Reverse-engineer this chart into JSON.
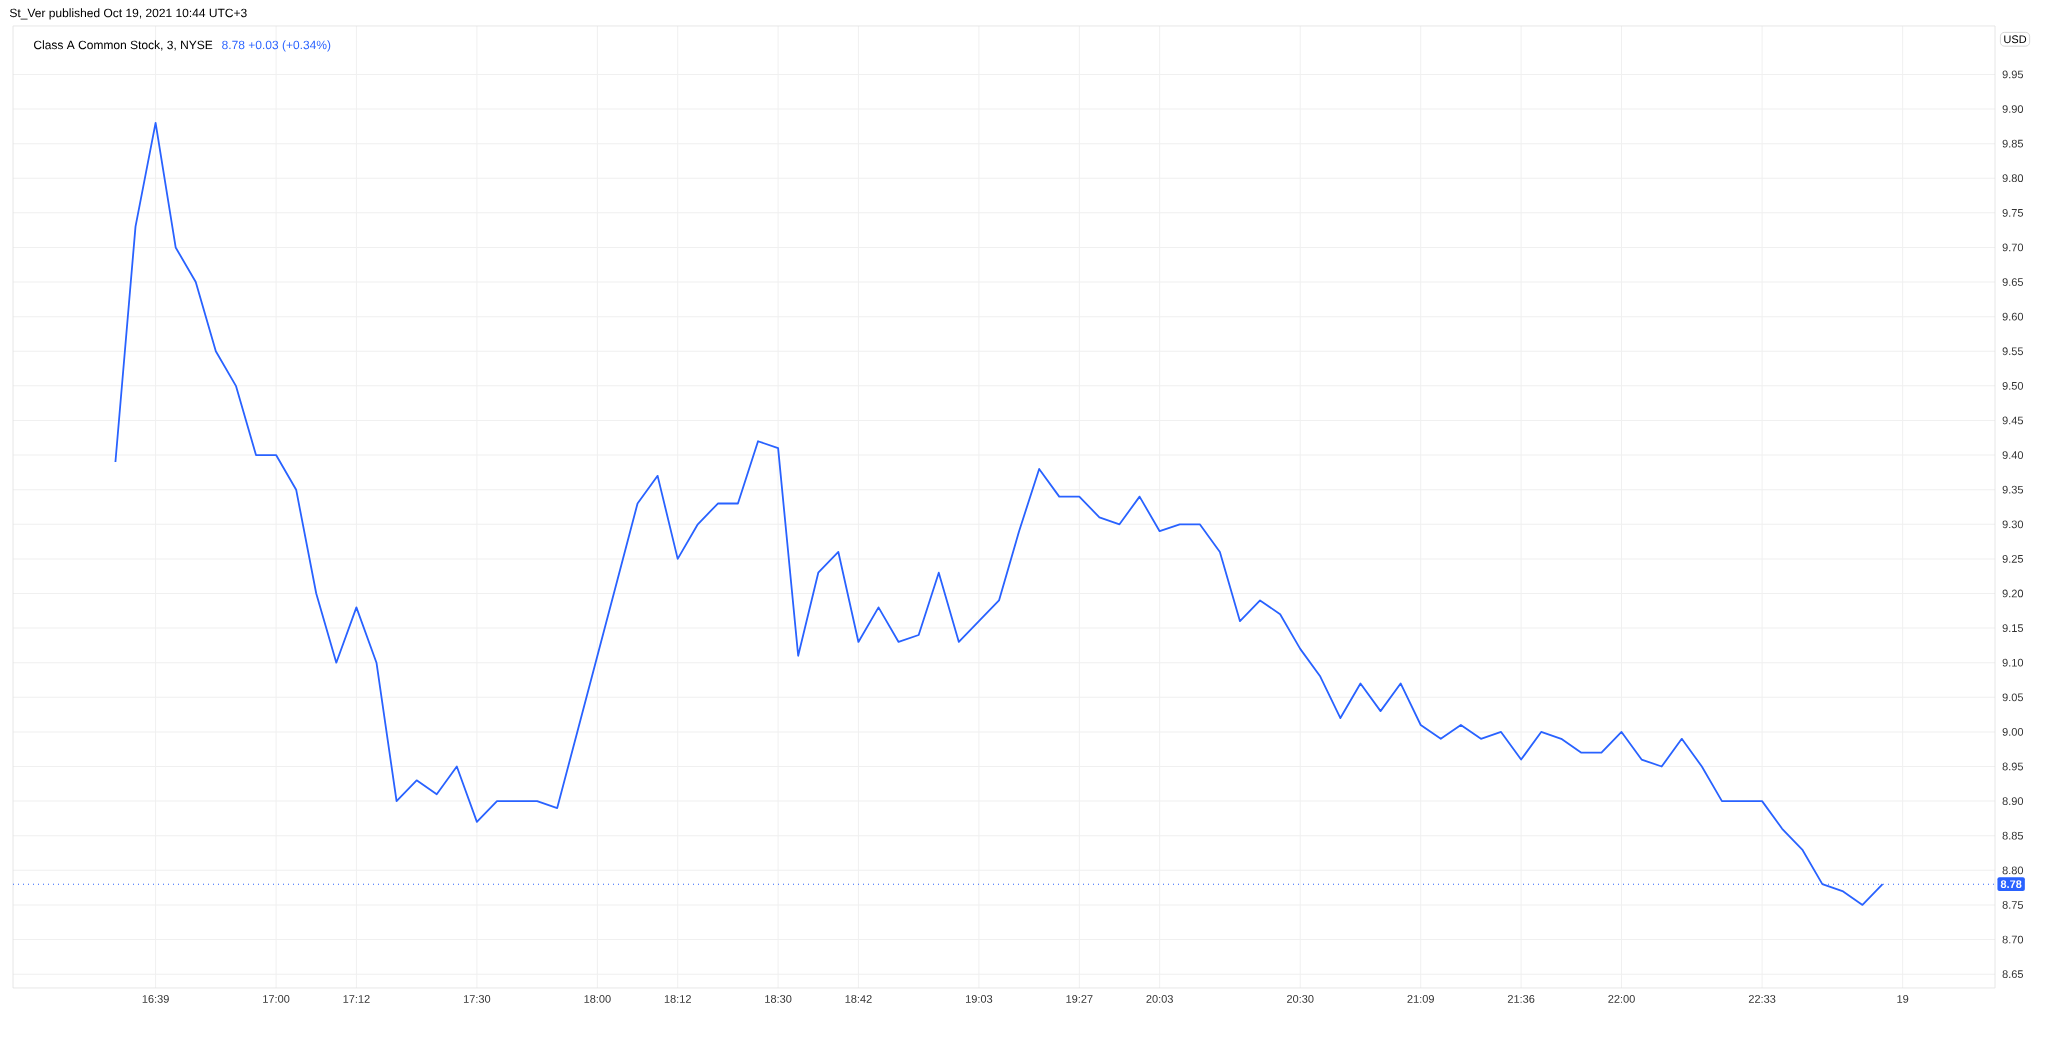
{
  "chart_data": {
    "type": "line",
    "title": "Class A Common Stock, 3, NYSE",
    "subtitle": "8.78  +0.03 (+0.34%)",
    "ylabel": "USD",
    "annotations": [
      "St_Ver published Oct 19, 2021 10:44 UTC+3"
    ],
    "categories": [
      null,
      null,
      "16:39",
      null,
      null,
      null,
      null,
      null,
      "17:00",
      null,
      null,
      null,
      "17:12",
      null,
      null,
      null,
      null,
      null,
      "17:30",
      null,
      null,
      null,
      null,
      null,
      "18:00",
      null,
      null,
      null,
      "18:12",
      null,
      null,
      null,
      null,
      "18:30",
      null,
      null,
      null,
      "18:42",
      null,
      null,
      null,
      null,
      null,
      "19:03",
      null,
      null,
      null,
      null,
      "19:27",
      null,
      null,
      null,
      "20:03",
      null,
      null,
      null,
      null,
      null,
      null,
      "20:30",
      null,
      null,
      null,
      null,
      null,
      "21:09",
      null,
      null,
      null,
      null,
      "21:36",
      null,
      null,
      null,
      null,
      "22:00",
      null,
      null,
      null,
      null,
      null,
      null,
      "22:33",
      null,
      null,
      null,
      null,
      null,
      null,
      "19"
    ],
    "series": [
      {
        "color": "#2962ff",
        "values": [
          9.39,
          9.73,
          9.88,
          9.7,
          9.65,
          9.55,
          9.5,
          9.4,
          9.4,
          9.35,
          9.2,
          9.1,
          9.18,
          9.1,
          8.9,
          8.93,
          8.91,
          8.95,
          8.87,
          8.9,
          8.9,
          8.9,
          8.89,
          9.0,
          9.11,
          9.22,
          9.33,
          9.37,
          9.25,
          9.3,
          9.33,
          9.33,
          9.42,
          9.41,
          9.11,
          9.23,
          9.26,
          9.13,
          9.18,
          9.13,
          9.14,
          9.23,
          9.13,
          9.16,
          9.19,
          9.29,
          9.38,
          9.34,
          9.34,
          9.31,
          9.3,
          9.34,
          9.29,
          9.3,
          9.3,
          9.26,
          9.16,
          9.19,
          9.17,
          9.12,
          9.08,
          9.02,
          9.07,
          9.03,
          9.07,
          9.01,
          8.99,
          9.01,
          8.99,
          9.0,
          8.96,
          9.0,
          8.99,
          8.97,
          8.97,
          9.0,
          8.96,
          8.95,
          8.99,
          8.95,
          8.9,
          8.9,
          8.9,
          8.86,
          8.83,
          8.78,
          8.77,
          8.75,
          8.78,
          null
        ]
      }
    ],
    "ylim": [
      8.63,
      10.02
    ],
    "yticks": [
      {
        "value": 8.65,
        "label": "8.65"
      },
      {
        "value": 8.7,
        "label": "8.70"
      },
      {
        "value": 8.75,
        "label": "8.75"
      },
      {
        "value": 8.8,
        "label": "8.80"
      },
      {
        "value": 8.85,
        "label": "8.85"
      },
      {
        "value": 8.9,
        "label": "8.90"
      },
      {
        "value": 8.95,
        "label": "8.95"
      },
      {
        "value": 9.0,
        "label": "9.00"
      },
      {
        "value": 9.05,
        "label": "9.05"
      },
      {
        "value": 9.1,
        "label": "9.10"
      },
      {
        "value": 9.15,
        "label": "9.15"
      },
      {
        "value": 9.2,
        "label": "9.20"
      },
      {
        "value": 9.25,
        "label": "9.25"
      },
      {
        "value": 9.3,
        "label": "9.30"
      },
      {
        "value": 9.35,
        "label": "9.35"
      },
      {
        "value": 9.4,
        "label": "9.40"
      },
      {
        "value": 9.45,
        "label": "9.45"
      },
      {
        "value": 9.5,
        "label": "9.50"
      },
      {
        "value": 9.55,
        "label": "9.55"
      },
      {
        "value": 9.6,
        "label": "9.60"
      },
      {
        "value": 9.65,
        "label": "9.65"
      },
      {
        "value": 9.7,
        "label": "9.70"
      },
      {
        "value": 9.75,
        "label": "9.75"
      },
      {
        "value": 9.8,
        "label": "9.80"
      },
      {
        "value": 9.85,
        "label": "9.85"
      },
      {
        "value": 9.9,
        "label": "9.90"
      },
      {
        "value": 9.95,
        "label": "9.95"
      }
    ],
    "ref_lines": [
      {
        "axis": "y",
        "value": 8.78,
        "label": "8.78",
        "color": "#2962ff",
        "line_style": "dotted"
      }
    ],
    "grid": true,
    "marker": "none",
    "line_style": "solid"
  }
}
